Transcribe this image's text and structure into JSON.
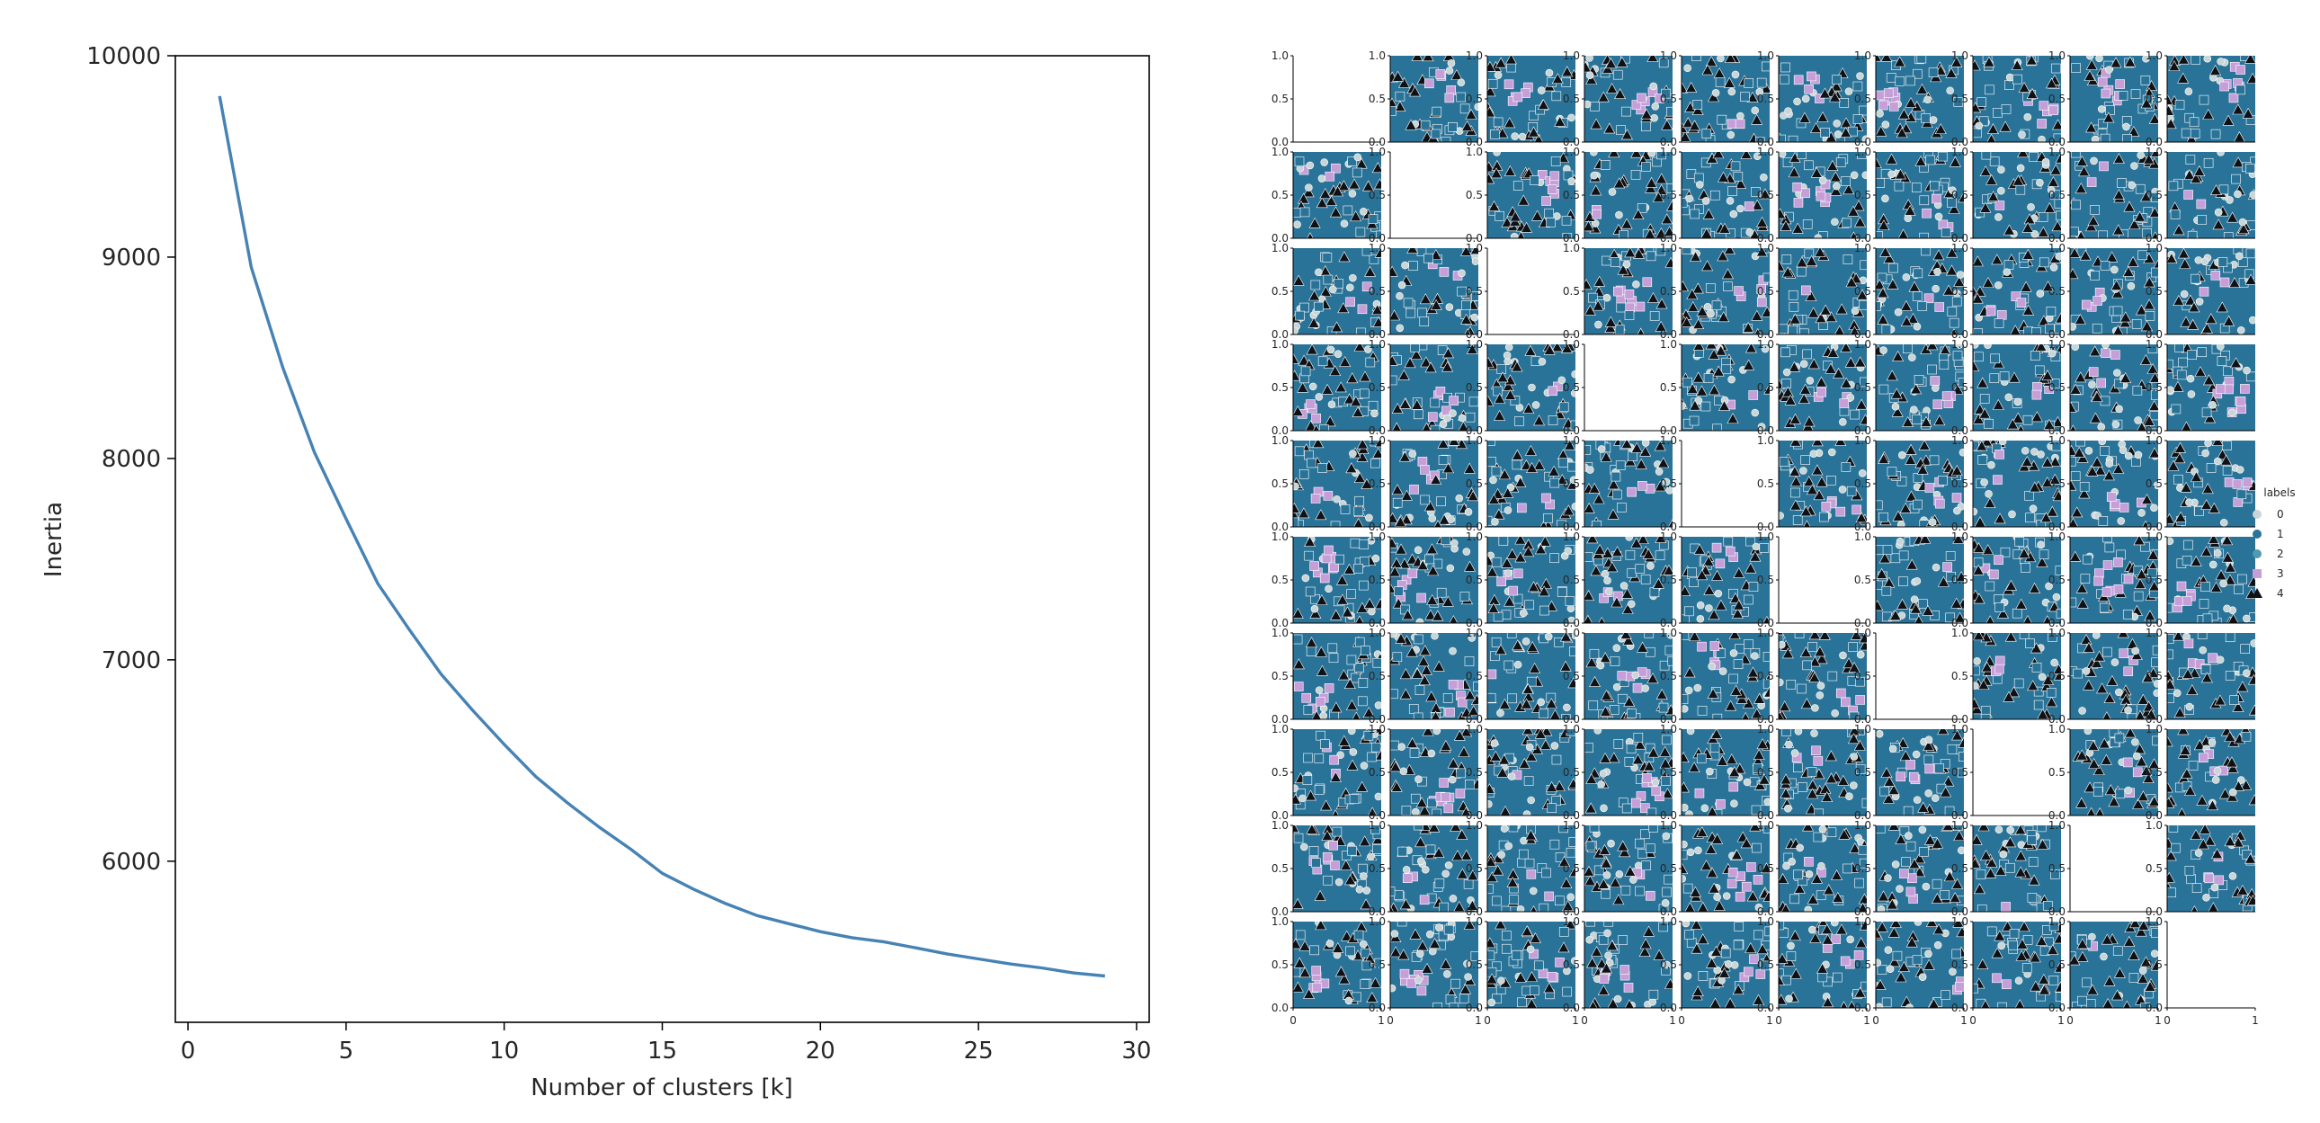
{
  "chart_data": [
    {
      "type": "line",
      "title": "",
      "xlabel": "Number of clusters [k]",
      "ylabel": "Inertia",
      "xlim": [
        -0.4,
        30.4
      ],
      "ylim": [
        5200,
        10000
      ],
      "x_ticks": [
        0,
        5,
        10,
        15,
        20,
        25,
        30
      ],
      "y_ticks": [
        6000,
        7000,
        8000,
        9000,
        10000
      ],
      "grid": false,
      "series": [
        {
          "color": "#4682b4",
          "x": [
            1,
            2,
            3,
            4,
            5,
            6,
            7,
            8,
            9,
            10,
            11,
            12,
            13,
            14,
            15,
            16,
            17,
            18,
            19,
            20,
            21,
            22,
            23,
            24,
            25,
            26,
            27,
            28,
            29
          ],
          "y": [
            9800,
            8950,
            8450,
            8030,
            7700,
            7380,
            7150,
            6930,
            6750,
            6580,
            6420,
            6290,
            6170,
            6060,
            5940,
            5860,
            5790,
            5730,
            5690,
            5650,
            5620,
            5600,
            5570,
            5540,
            5515,
            5490,
            5470,
            5445,
            5430
          ]
        }
      ]
    },
    {
      "type": "scatter",
      "title": "",
      "grid_size": 10,
      "diagonal": "blank",
      "tick_labels": [
        "0.0",
        "0.5",
        "1.0"
      ],
      "x_tick_labels": [
        "0",
        "1"
      ],
      "xlim": [
        0,
        1
      ],
      "ylim": [
        0,
        1
      ],
      "legend": {
        "title": "labels",
        "placement": "right",
        "entries": [
          {
            "label": "0",
            "marker": "circle",
            "color": "#c8d6d8"
          },
          {
            "label": "1",
            "marker": "circle",
            "color": "#2a7398"
          },
          {
            "label": "2",
            "marker": "circle",
            "color": "#4f9ab0"
          },
          {
            "label": "3",
            "marker": "square",
            "color": "#c79fd8"
          },
          {
            "label": "4",
            "marker": "triangle",
            "color": "#0e1216"
          }
        ]
      }
    }
  ]
}
